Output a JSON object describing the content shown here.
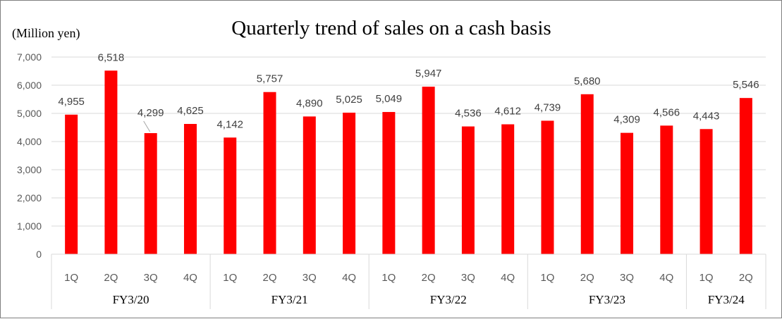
{
  "chart_data": {
    "type": "bar",
    "title": "Quarterly trend of sales on a cash basis",
    "ylabel": "(Million yen)",
    "xlabel": "",
    "ylim": [
      0,
      7000
    ],
    "yticks": [
      0,
      1000,
      2000,
      3000,
      4000,
      5000,
      6000,
      7000
    ],
    "ytick_labels": [
      "0",
      "1,000",
      "2,000",
      "3,000",
      "4,000",
      "5,000",
      "6,000",
      "7,000"
    ],
    "grid": true,
    "legend": "none",
    "bar_color": "#FF0000",
    "groups": [
      {
        "label": "FY3/20",
        "quarters": [
          "1Q",
          "2Q",
          "3Q",
          "4Q"
        ]
      },
      {
        "label": "FY3/21",
        "quarters": [
          "1Q",
          "2Q",
          "3Q",
          "4Q"
        ]
      },
      {
        "label": "FY3/22",
        "quarters": [
          "1Q",
          "2Q",
          "3Q",
          "4Q"
        ]
      },
      {
        "label": "FY3/23",
        "quarters": [
          "1Q",
          "2Q",
          "3Q",
          "4Q"
        ]
      },
      {
        "label": "FY3/24",
        "quarters": [
          "1Q",
          "2Q"
        ]
      }
    ],
    "values": [
      4955,
      6518,
      4299,
      4625,
      4142,
      5757,
      4890,
      5025,
      5049,
      5947,
      4536,
      4612,
      4739,
      5680,
      4309,
      4566,
      4443,
      5546
    ],
    "value_labels": [
      "4,955",
      "6,518",
      "4,299",
      "4,625",
      "4,142",
      "5,757",
      "4,890",
      "5,025",
      "5,049",
      "5,947",
      "4,536",
      "4,612",
      "4,739",
      "5,680",
      "4,309",
      "4,566",
      "4,443",
      "5,546"
    ]
  }
}
